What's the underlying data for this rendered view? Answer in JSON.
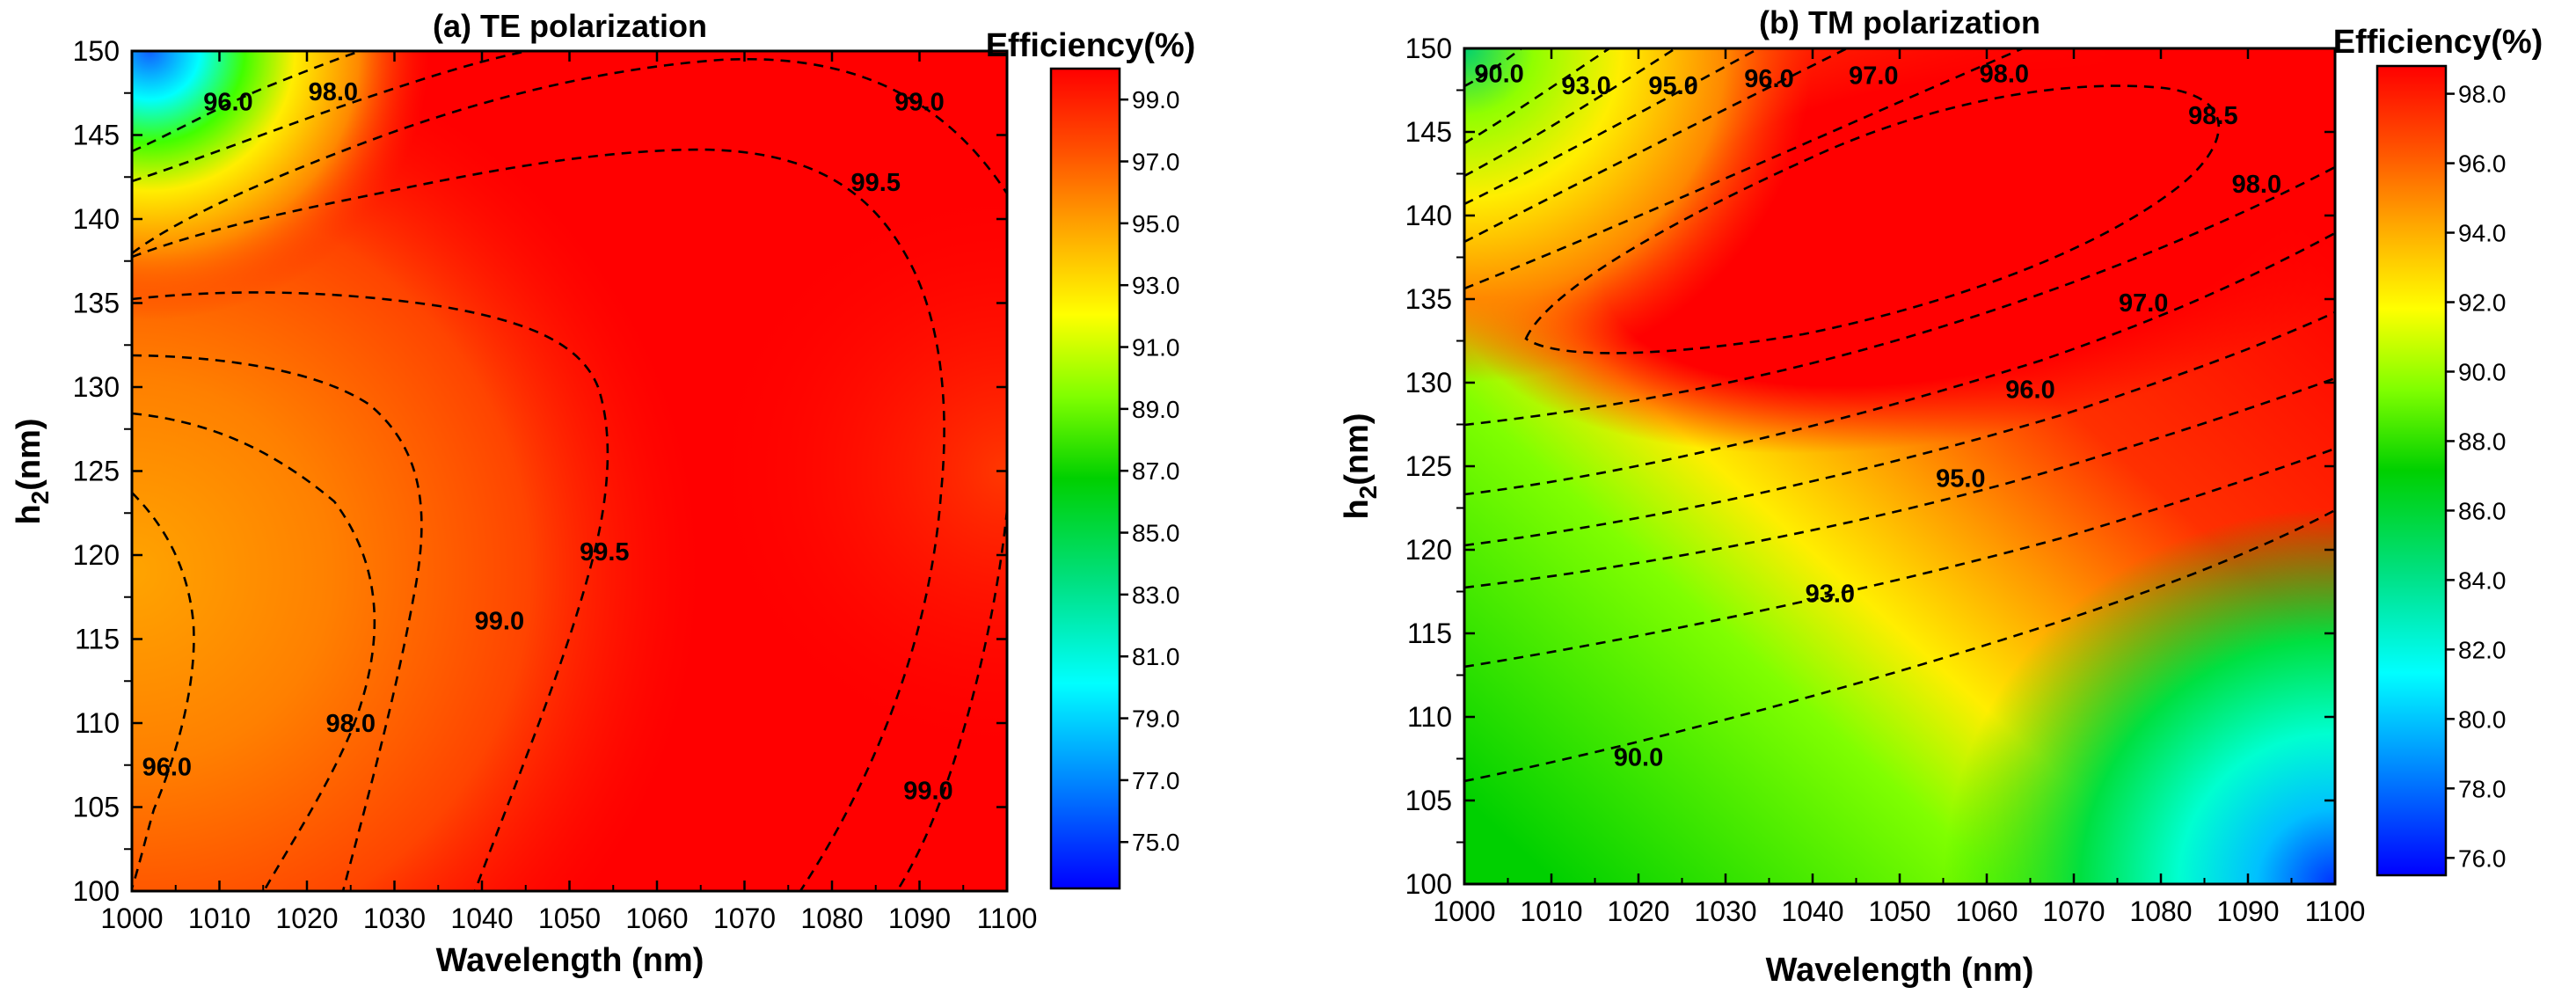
{
  "chart_data": [
    {
      "type": "heatmap",
      "title": "(a) TE polarization",
      "xlabel": "Wavelength (nm)",
      "ylabel_main": "h",
      "ylabel_sub": "2",
      "ylabel_tail": "(nm)",
      "xlim": [
        1000,
        1100
      ],
      "ylim": [
        100,
        150
      ],
      "xticks": [
        "1000",
        "1010",
        "1020",
        "1030",
        "1040",
        "1050",
        "1060",
        "1070",
        "1080",
        "1090",
        "1100"
      ],
      "yticks": [
        "100",
        "105",
        "110",
        "115",
        "120",
        "125",
        "130",
        "135",
        "140",
        "145",
        "150"
      ],
      "colorbar": {
        "title": "Efficiency(%)",
        "range": [
          73.5,
          100
        ],
        "ticks": [
          "75.0",
          "77.0",
          "79.0",
          "81.0",
          "83.0",
          "85.0",
          "87.0",
          "89.0",
          "91.0",
          "93.0",
          "95.0",
          "97.0",
          "99.0"
        ]
      },
      "contour_labels": [
        {
          "text": "96.0",
          "x": 1011,
          "y": 147
        },
        {
          "text": "98.0",
          "x": 1023,
          "y": 147.6
        },
        {
          "text": "99.0",
          "x": 1090,
          "y": 147
        },
        {
          "text": "99.5",
          "x": 1085,
          "y": 142.2
        },
        {
          "text": "99.5",
          "x": 1054,
          "y": 120.2
        },
        {
          "text": "99.0",
          "x": 1042,
          "y": 116.1
        },
        {
          "text": "98.0",
          "x": 1025,
          "y": 110
        },
        {
          "text": "96.0",
          "x": 1004,
          "y": 107.4
        },
        {
          "text": "99.0",
          "x": 1091,
          "y": 106
        }
      ]
    },
    {
      "type": "heatmap",
      "title": "(b) TM polarization",
      "xlabel": "Wavelength (nm)",
      "ylabel_main": "h",
      "ylabel_sub": "2",
      "ylabel_tail": "(nm)",
      "xlim": [
        1000,
        1100
      ],
      "ylim": [
        100,
        150
      ],
      "xticks": [
        "1000",
        "1010",
        "1020",
        "1030",
        "1040",
        "1050",
        "1060",
        "1070",
        "1080",
        "1090",
        "1100"
      ],
      "yticks": [
        "100",
        "105",
        "110",
        "115",
        "120",
        "125",
        "130",
        "135",
        "140",
        "145",
        "150"
      ],
      "colorbar": {
        "title": "Efficiency(%)",
        "range": [
          75.5,
          98.8
        ],
        "ticks": [
          "76.0",
          "78.0",
          "80.0",
          "82.0",
          "84.0",
          "86.0",
          "88.0",
          "90.0",
          "92.0",
          "94.0",
          "96.0",
          "98.0"
        ]
      },
      "contour_labels": [
        {
          "text": "90.0",
          "x": 1004,
          "y": 148.5
        },
        {
          "text": "93.0",
          "x": 1014,
          "y": 147.8
        },
        {
          "text": "95.0",
          "x": 1024,
          "y": 147.8
        },
        {
          "text": "96.0",
          "x": 1035,
          "y": 148.2
        },
        {
          "text": "97.0",
          "x": 1047,
          "y": 148.4
        },
        {
          "text": "98.0",
          "x": 1062,
          "y": 148.5
        },
        {
          "text": "98.5",
          "x": 1086,
          "y": 146
        },
        {
          "text": "98.0",
          "x": 1091,
          "y": 141.9
        },
        {
          "text": "97.0",
          "x": 1078,
          "y": 134.8
        },
        {
          "text": "96.0",
          "x": 1065,
          "y": 129.6
        },
        {
          "text": "95.0",
          "x": 1057,
          "y": 124.3
        },
        {
          "text": "93.0",
          "x": 1042,
          "y": 117.4
        },
        {
          "text": "90.0",
          "x": 1020,
          "y": 107.6
        }
      ]
    }
  ]
}
